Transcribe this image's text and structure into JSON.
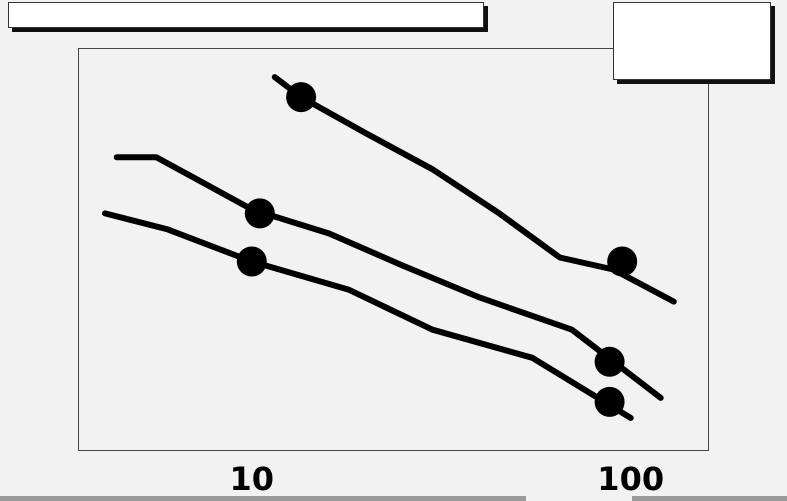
{
  "chart_data": {
    "type": "line",
    "title": "",
    "xlabel": "",
    "ylabel": "",
    "x_scale": "log",
    "x_ticks": [
      10,
      100
    ],
    "x_tick_labels": [
      "10",
      "100"
    ],
    "xlim": [
      3.5,
      160
    ],
    "ylim": [
      0,
      1
    ],
    "grid": false,
    "line_color": "#000000",
    "series": [
      {
        "points": [
          [
            11.5,
            0.93
          ],
          [
            13.5,
            0.88
          ],
          [
            20,
            0.79
          ],
          [
            30,
            0.7
          ],
          [
            45,
            0.59
          ],
          [
            65,
            0.48
          ],
          [
            90,
            0.45
          ],
          [
            130,
            0.37
          ]
        ],
        "markers": [
          [
            13.5,
            0.88
          ],
          [
            95,
            0.47
          ]
        ]
      },
      {
        "points": [
          [
            4.4,
            0.73
          ],
          [
            5.6,
            0.73
          ],
          [
            7,
            0.68
          ],
          [
            10,
            0.6
          ],
          [
            16,
            0.54
          ],
          [
            25,
            0.46
          ],
          [
            40,
            0.38
          ],
          [
            70,
            0.3
          ],
          [
            120,
            0.13
          ]
        ],
        "markers": [
          [
            10.5,
            0.59
          ],
          [
            88,
            0.22
          ]
        ]
      },
      {
        "points": [
          [
            4.1,
            0.59
          ],
          [
            6,
            0.55
          ],
          [
            10,
            0.47
          ],
          [
            18,
            0.4
          ],
          [
            30,
            0.3
          ],
          [
            55,
            0.23
          ],
          [
            100,
            0.08
          ]
        ],
        "markers": [
          [
            10,
            0.47
          ],
          [
            88,
            0.12
          ]
        ]
      }
    ]
  }
}
